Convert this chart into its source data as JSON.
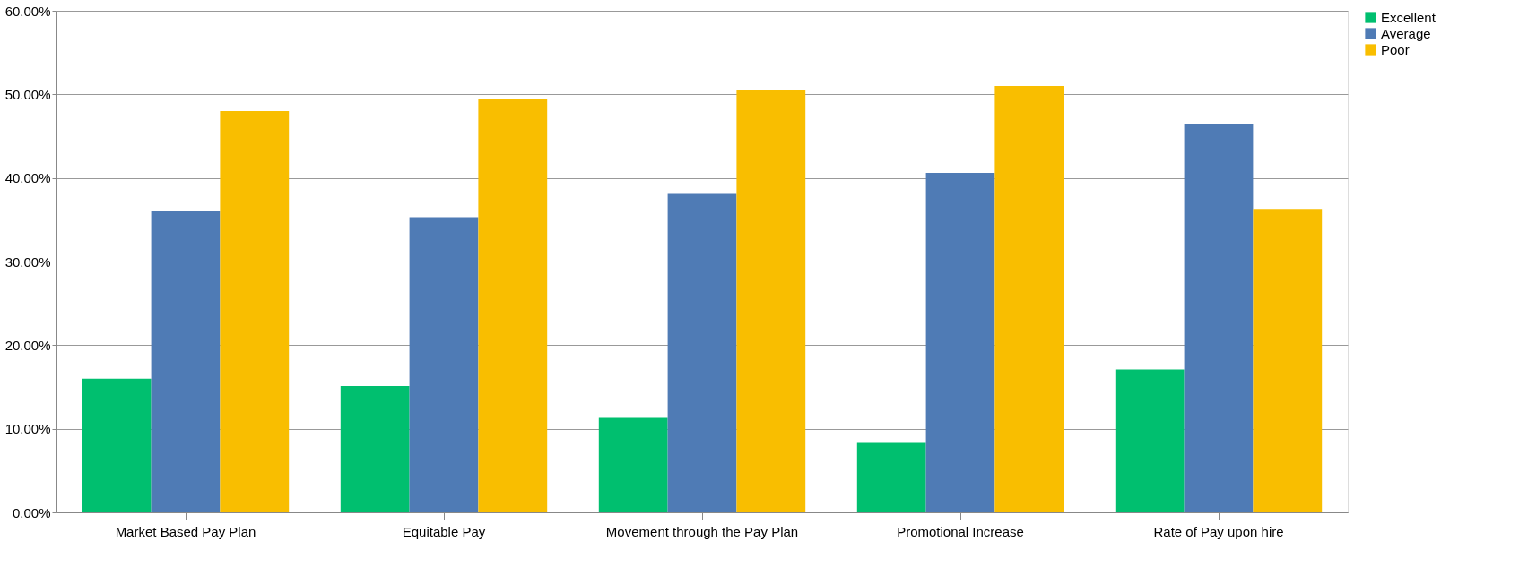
{
  "chart_data": {
    "type": "bar",
    "categories": [
      "Market Based Pay Plan",
      "Equitable Pay",
      "Movement through the Pay Plan",
      "Promotional Increase",
      "Rate of Pay upon hire"
    ],
    "series": [
      {
        "name": "Excellent",
        "color": "#00bf6f",
        "values": [
          16.0,
          15.1,
          11.3,
          8.3,
          17.1
        ]
      },
      {
        "name": "Average",
        "color": "#4f7bb5",
        "values": [
          36.0,
          35.3,
          38.1,
          40.6,
          46.5
        ]
      },
      {
        "name": "Poor",
        "color": "#f9be00",
        "values": [
          48.0,
          49.4,
          50.5,
          51.0,
          36.3
        ]
      }
    ],
    "ylim": [
      0,
      60
    ],
    "yticks": [
      {
        "value": 0,
        "label": "0.00%"
      },
      {
        "value": 10,
        "label": "10.00%"
      },
      {
        "value": 20,
        "label": "20.00%"
      },
      {
        "value": 30,
        "label": "30.00%"
      },
      {
        "value": 40,
        "label": "40.00%"
      },
      {
        "value": 50,
        "label": "50.00%"
      },
      {
        "value": 60,
        "label": "60.00%"
      }
    ],
    "grid": "y",
    "legend": "right"
  }
}
